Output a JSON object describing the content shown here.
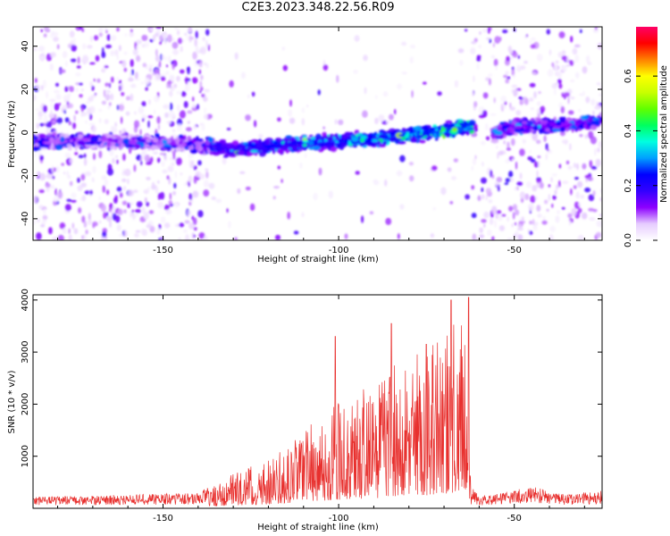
{
  "title": "C2E3.2023.348.22.56.R09",
  "chart_data": [
    {
      "type": "heatmap",
      "xlabel": "Height of straight line (km)",
      "ylabel": "Frequency (Hz)",
      "xlim": [
        -187,
        -25
      ],
      "ylim": [
        -50,
        49
      ],
      "xticks": [
        -150,
        -100,
        -50
      ],
      "yticks": [
        -40,
        -20,
        0,
        20,
        40
      ],
      "colorbar": {
        "label": "Normalized spectral amplitude",
        "range": [
          0,
          0.78
        ],
        "ticks": [
          0.0,
          0.2,
          0.4,
          0.6
        ],
        "colors": [
          "#ffffff",
          "#e6ccff",
          "#8c00ff",
          "#3300ff",
          "#0000ff",
          "#00a0ff",
          "#00ffe0",
          "#00ff60",
          "#60ff00",
          "#c8ff00",
          "#ffff00",
          "#ff8000",
          "#ff0000",
          "#ff0066"
        ]
      },
      "ridge": {
        "description": "dominant frequency band vs height",
        "x": [
          -187,
          -170,
          -150,
          -140,
          -130,
          -120,
          -110,
          -100,
          -90,
          -80,
          -70,
          -63,
          -58,
          -50,
          -40,
          -30,
          -25
        ],
        "y": [
          -4,
          -4,
          -5,
          -6,
          -8,
          -6,
          -5,
          -4,
          -3,
          -1,
          1,
          3,
          -2,
          3,
          3,
          4,
          5
        ]
      }
    },
    {
      "type": "line",
      "xlabel": "Height of straight line (km)",
      "ylabel": "SNR (10 * v/v)",
      "xlim": [
        -187,
        -25
      ],
      "ylim": [
        0,
        4100
      ],
      "xticks": [
        -150,
        -100,
        -50
      ],
      "yticks": [
        1000,
        2000,
        3000,
        4000
      ],
      "color": "#e8302e",
      "envelope": {
        "x": [
          -187,
          -160,
          -140,
          -130,
          -120,
          -110,
          -100,
          -90,
          -80,
          -72,
          -68,
          -64,
          -62,
          -60,
          -50,
          -45,
          -35,
          -25
        ],
        "y": [
          220,
          260,
          300,
          700,
          950,
          1550,
          2050,
          2400,
          3000,
          3200,
          3600,
          4050,
          420,
          220,
          350,
          420,
          260,
          350
        ]
      },
      "peaks": [
        {
          "x": -101,
          "y": 3300
        },
        {
          "x": -85,
          "y": 3550
        },
        {
          "x": -75,
          "y": 3150
        },
        {
          "x": -68,
          "y": 4000
        },
        {
          "x": -63,
          "y": 4050
        }
      ]
    }
  ]
}
